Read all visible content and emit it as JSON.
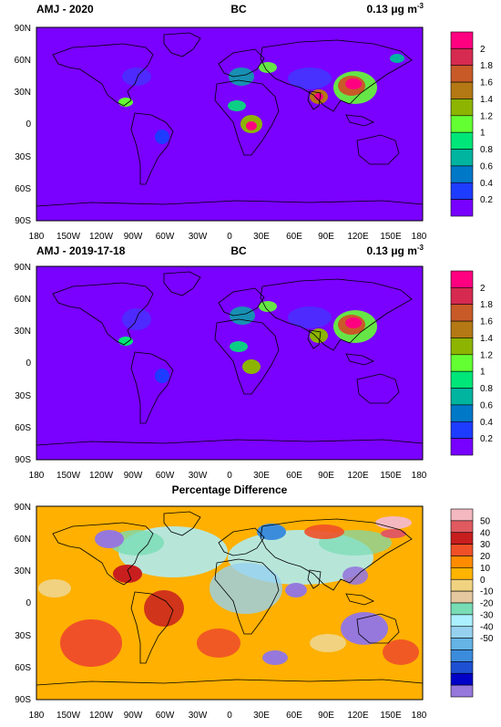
{
  "panels": [
    {
      "left_title": "AMJ - 2020",
      "center_title": "BC",
      "right_title_value": "0.13",
      "right_title_mu": "μ",
      "right_title_unit": "g m",
      "right_title_exp": "-3",
      "colorbar_labels": [
        "2",
        "1.8",
        "1.6",
        "1.4",
        "1.2",
        "1",
        "0.8",
        "0.6",
        "0.4",
        "0.2"
      ],
      "colorbar_colors": [
        "#ff0080",
        "#d62a50",
        "#c85a28",
        "#b47814",
        "#8cb400",
        "#64ff32",
        "#00e678",
        "#00b4a0",
        "#0078c8",
        "#1e3cff",
        "#7800ff"
      ]
    },
    {
      "left_title": "AMJ - 2019-17-18",
      "center_title": "BC",
      "right_title_value": "0.13",
      "right_title_mu": "μ",
      "right_title_unit": "g m",
      "right_title_exp": "-3",
      "colorbar_labels": [
        "2",
        "1.8",
        "1.6",
        "1.4",
        "1.2",
        "1",
        "0.8",
        "0.6",
        "0.4",
        "0.2"
      ],
      "colorbar_colors": [
        "#ff0080",
        "#d62a50",
        "#c85a28",
        "#b47814",
        "#8cb400",
        "#64ff32",
        "#00e678",
        "#00b4a0",
        "#0078c8",
        "#1e3cff",
        "#7800ff"
      ]
    },
    {
      "left_title": "",
      "center_title": "Percentage Difference",
      "colorbar_labels": [
        "50",
        "40",
        "30",
        "20",
        "10",
        "0",
        "-10",
        "-20",
        "-30",
        "-40",
        "-50"
      ],
      "colorbar_colors": [
        "#f4b8c0",
        "#e05a60",
        "#c81e1e",
        "#f05028",
        "#ff8c00",
        "#ffb400",
        "#f0d280",
        "#e6c8a0",
        "#78dcb4",
        "#aaf0ff",
        "#96d2f0",
        "#64b4e6",
        "#3c8cdc",
        "#1e50d2",
        "#0000c8",
        "#9678dc"
      ]
    }
  ],
  "lat_ticks": [
    "90N",
    "60N",
    "30N",
    "0",
    "30S",
    "60S",
    "90S"
  ],
  "lon_ticks": [
    "180",
    "150W",
    "120W",
    "90W",
    "60W",
    "30W",
    "0",
    "30E",
    "60E",
    "90E",
    "120E",
    "150E",
    "180"
  ],
  "map_background_concentration": "#7a00ff",
  "map_background_difference": "#ffb000"
}
